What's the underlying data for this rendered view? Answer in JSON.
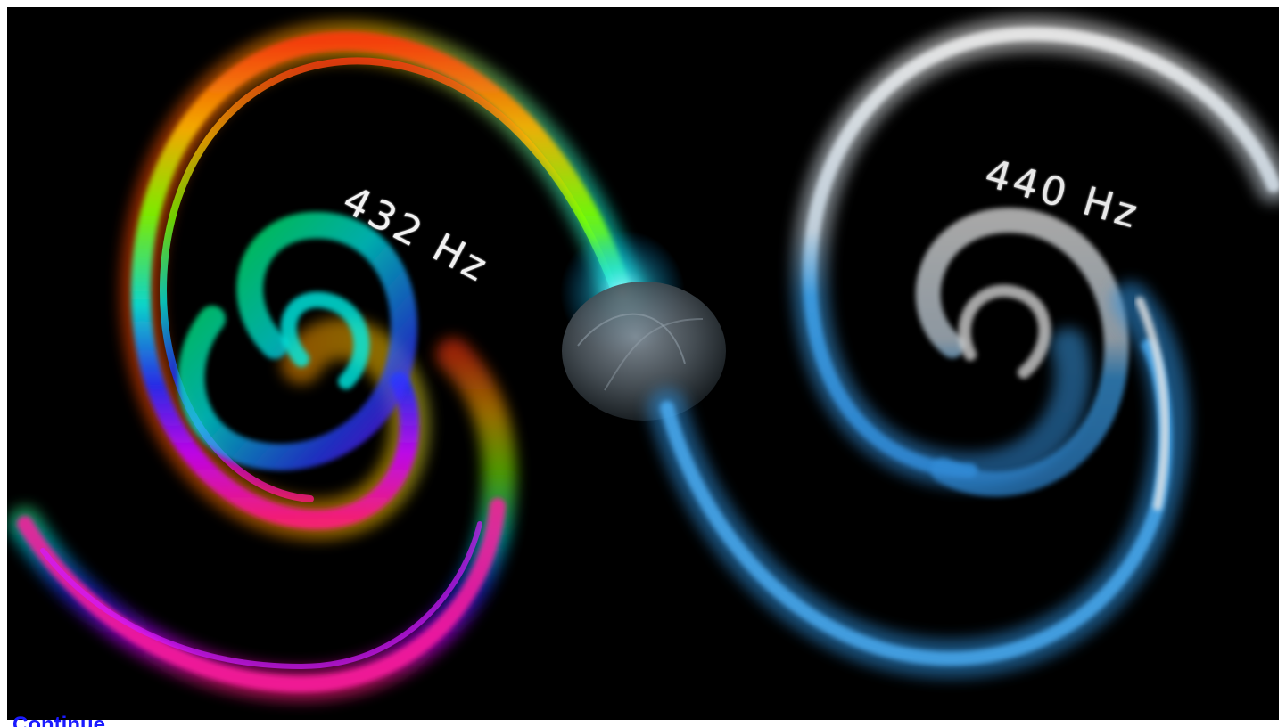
{
  "hero": {
    "left_label": "432 Hz",
    "right_label": "440 Hz"
  },
  "link": {
    "continue_label": "Continue"
  },
  "colors": {
    "background": "#000000",
    "link": "#1a1aff",
    "blue_swirl": "#3a9fe0",
    "white_swirl": "#e6e6e6"
  }
}
